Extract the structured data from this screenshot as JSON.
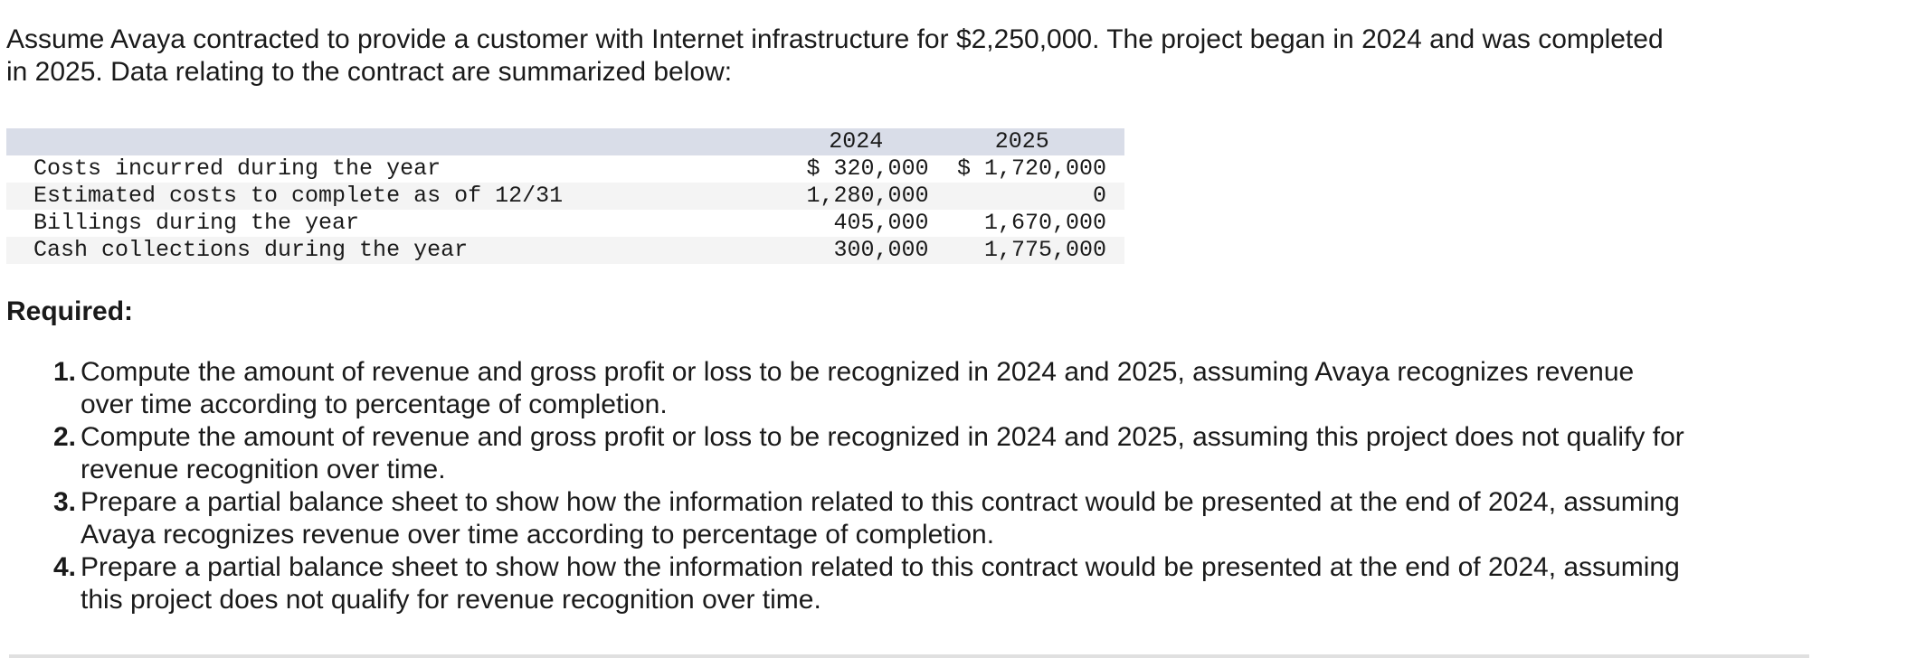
{
  "intro": "Assume Avaya contracted to provide a customer with Internet infrastructure for $2,250,000. The project began in 2024 and was completed in 2025. Data relating to the contract are summarized below:",
  "table": {
    "headers": [
      "",
      "2024",
      "2025"
    ],
    "rows": [
      {
        "label": "Costs incurred during the year",
        "y2024": "$ 320,000",
        "y2025": "$ 1,720,000"
      },
      {
        "label": "Estimated costs to complete as of 12/31",
        "y2024": "1,280,000",
        "y2025": "0"
      },
      {
        "label": "Billings during the year",
        "y2024": "405,000",
        "y2025": "1,670,000"
      },
      {
        "label": "Cash collections during the year",
        "y2024": "300,000",
        "y2025": "1,775,000"
      }
    ]
  },
  "required": {
    "title": "Required:",
    "items": [
      {
        "num": "1.",
        "text": "Compute the amount of revenue and gross profit or loss to be recognized in 2024 and 2025, assuming Avaya recognizes revenue over time according to percentage of completion."
      },
      {
        "num": "2.",
        "text": "Compute the amount of revenue and gross profit or loss to be recognized in 2024 and 2025, assuming this project does not qualify for revenue recognition over time."
      },
      {
        "num": "3.",
        "text": "Prepare a partial balance sheet to show how the information related to this contract would be presented at the end of 2024, assuming Avaya recognizes revenue over time according to percentage of completion."
      },
      {
        "num": "4.",
        "text": "Prepare a partial balance sheet to show how the information related to this contract would be presented at the end of 2024, assuming this project does not qualify for revenue recognition over time."
      }
    ]
  }
}
